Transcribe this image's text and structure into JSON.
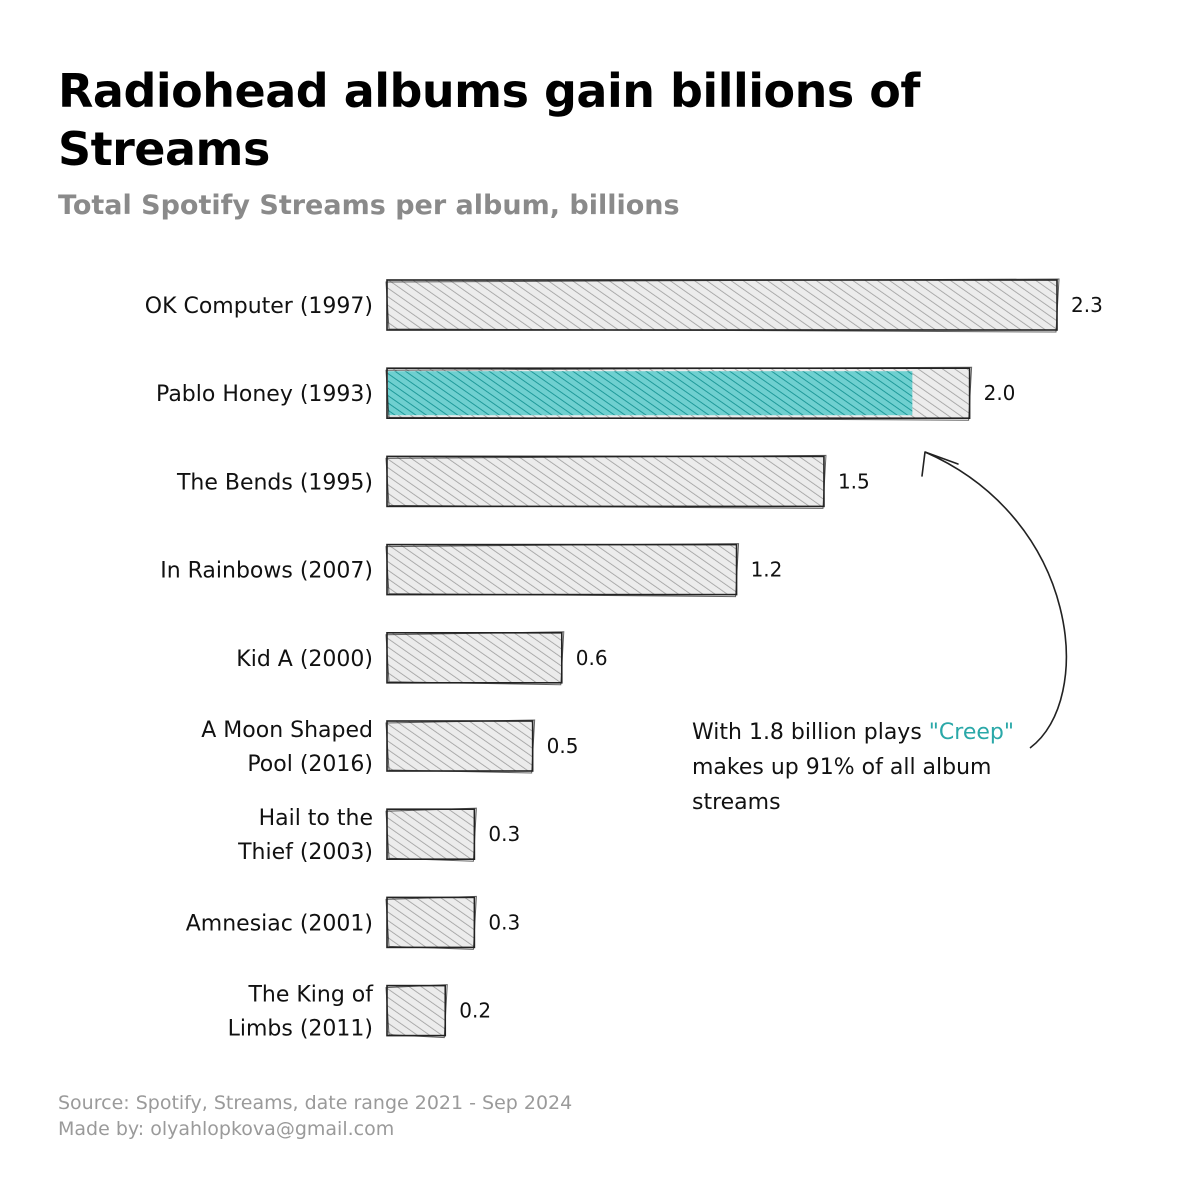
{
  "title": "Radiohead albums gain billions of Streams",
  "subtitle": "Total Spotify Streams per album, billions",
  "chart_data": {
    "type": "bar",
    "orientation": "horizontal",
    "categories": [
      "OK Computer (1997)",
      "Pablo Honey (1993)",
      "The Bends (1995)",
      "In Rainbows (2007)",
      "Kid A (2000)",
      "A Moon Shaped Pool (2016)",
      "Hail to the Thief (2003)",
      "Amnesiac (2001)",
      "The King of Limbs (2011)"
    ],
    "values": [
      2.3,
      2.0,
      1.5,
      1.2,
      0.6,
      0.5,
      0.3,
      0.3,
      0.2
    ],
    "value_labels": [
      "2.3",
      "2.0",
      "1.5",
      "1.2",
      "0.6",
      "0.5",
      "0.3",
      "0.3",
      "0.2"
    ],
    "highlight": {
      "category": "Pablo Honey (1993)",
      "track": "Creep",
      "value": 1.8,
      "color": "#2aa8a8"
    },
    "xlim": [
      0,
      2.3
    ],
    "grid": false,
    "bar_color": "#d9d9d9",
    "outline_color": "#222222"
  },
  "annotation": {
    "line1": "With 1.8 billion plays ",
    "highlight": "\"Creep\"",
    "line2": "makes up 91% of all album",
    "line3": "streams"
  },
  "footer": {
    "source": "Source: Spotify, Streams, date range 2021 - Sep 2024",
    "made_by": "Made by: olyahlopkova@gmail.com"
  }
}
